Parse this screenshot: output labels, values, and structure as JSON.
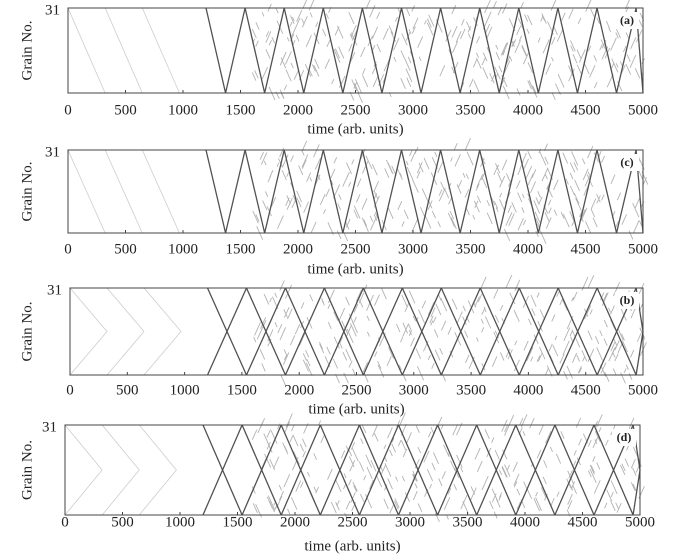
{
  "chart_data": [
    {
      "type": "heatmap",
      "label": "(a)",
      "xlabel": "time (arb. units)",
      "ylabel": "Grain No.",
      "xlim": [
        0,
        5000
      ],
      "xticks": [
        0,
        500,
        1000,
        1500,
        2000,
        2500,
        3000,
        3500,
        4000,
        4500,
        5000
      ],
      "ylim": [
        1,
        31
      ],
      "yticks": [
        31
      ]
    },
    {
      "type": "heatmap",
      "label": "(c)",
      "xlabel": "time (arb. units)",
      "ylabel": "Grain No.",
      "xlim": [
        0,
        5000
      ],
      "xticks": [
        0,
        500,
        1000,
        1500,
        2000,
        2500,
        3000,
        3500,
        4000,
        4500,
        5000
      ],
      "ylim": [
        1,
        31
      ],
      "yticks": [
        31
      ]
    },
    {
      "type": "heatmap",
      "label": "(b)",
      "xlabel": "time (arb. units)",
      "ylabel": "Grain No.",
      "xlim": [
        0,
        5000
      ],
      "xticks": [
        0,
        500,
        1000,
        1500,
        2000,
        2500,
        3000,
        3500,
        4000,
        4500,
        5000
      ],
      "ylim": [
        1,
        31
      ],
      "yticks": [
        31
      ]
    },
    {
      "type": "heatmap",
      "label": "(d)",
      "xlabel": "time (arb. units)",
      "ylabel": "Grain No.",
      "xlim": [
        0,
        5000
      ],
      "xticks": [
        0,
        500,
        1000,
        1500,
        2000,
        2500,
        3000,
        3500,
        4000,
        4500,
        5000
      ],
      "ylim": [
        1,
        31
      ],
      "yticks": [
        31
      ]
    }
  ]
}
